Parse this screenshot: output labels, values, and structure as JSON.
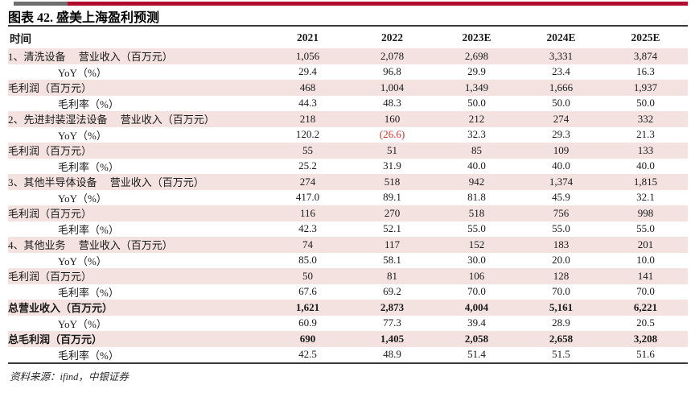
{
  "page": {
    "title": "图表 42. 盛美上海盈利预测",
    "source_note": "资料来源：ifind，中银证券",
    "accent_colors": {
      "bar_gray": "#6e6e6e",
      "bar_red": "#af0c2e"
    }
  },
  "table": {
    "header": {
      "label": "时间",
      "columns": [
        "2021",
        "2022",
        "2023E",
        "2024E",
        "2025E"
      ]
    },
    "colors": {
      "shaded_row": "#f3e2e0",
      "negative_value": "#e02a22"
    },
    "rows": [
      {
        "label": "1、清洗设备　 营业收入（百万元）",
        "indent": false,
        "bold": false,
        "shaded": true,
        "values": [
          "1,056",
          "2,078",
          "2,698",
          "3,331",
          "3,874"
        ]
      },
      {
        "label": "YoY（%）",
        "indent": true,
        "bold": false,
        "shaded": false,
        "values": [
          "29.4",
          "96.8",
          "29.9",
          "23.4",
          "16.3"
        ]
      },
      {
        "label": "毛利润（百万元）",
        "indent": false,
        "bold": false,
        "shaded": true,
        "values": [
          "468",
          "1,004",
          "1,349",
          "1,666",
          "1,937"
        ]
      },
      {
        "label": "毛利率（%）",
        "indent": true,
        "bold": false,
        "shaded": false,
        "values": [
          "44.3",
          "48.3",
          "50.0",
          "50.0",
          "50.0"
        ]
      },
      {
        "label": "2、先进封装湿法设备　 营业收入（百万元）",
        "indent": false,
        "bold": false,
        "shaded": true,
        "values": [
          "218",
          "160",
          "212",
          "274",
          "332"
        ]
      },
      {
        "label": "YoY（%）",
        "indent": true,
        "bold": false,
        "shaded": false,
        "values": [
          "120.2",
          "(26.6)",
          "32.3",
          "29.3",
          "21.3"
        ],
        "red_col": 1
      },
      {
        "label": "毛利润（百万元）",
        "indent": false,
        "bold": false,
        "shaded": true,
        "values": [
          "55",
          "51",
          "85",
          "109",
          "133"
        ]
      },
      {
        "label": "毛利率（%）",
        "indent": true,
        "bold": false,
        "shaded": false,
        "values": [
          "25.2",
          "31.9",
          "40.0",
          "40.0",
          "40.0"
        ]
      },
      {
        "label": "3、其他半导体设备　 营业收入（百万元）",
        "indent": false,
        "bold": false,
        "shaded": true,
        "values": [
          "274",
          "518",
          "942",
          "1,374",
          "1,815"
        ]
      },
      {
        "label": "YoY（%）",
        "indent": true,
        "bold": false,
        "shaded": false,
        "values": [
          "417.0",
          "89.1",
          "81.8",
          "45.9",
          "32.1"
        ]
      },
      {
        "label": "毛利润（百万元）",
        "indent": false,
        "bold": false,
        "shaded": true,
        "values": [
          "116",
          "270",
          "518",
          "756",
          "998"
        ]
      },
      {
        "label": "毛利率（%）",
        "indent": true,
        "bold": false,
        "shaded": false,
        "values": [
          "42.3",
          "52.1",
          "55.0",
          "55.0",
          "55.0"
        ]
      },
      {
        "label": "4、其他业务　 营业收入（百万元）",
        "indent": false,
        "bold": false,
        "shaded": true,
        "values": [
          "74",
          "117",
          "152",
          "183",
          "201"
        ]
      },
      {
        "label": "YoY（%）",
        "indent": true,
        "bold": false,
        "shaded": false,
        "values": [
          "85.0",
          "58.1",
          "30.0",
          "20.0",
          "10.0"
        ]
      },
      {
        "label": "毛利润（百万元）",
        "indent": false,
        "bold": false,
        "shaded": true,
        "values": [
          "50",
          "81",
          "106",
          "128",
          "141"
        ]
      },
      {
        "label": "毛利率（%）",
        "indent": true,
        "bold": false,
        "shaded": false,
        "values": [
          "67.6",
          "69.2",
          "70.0",
          "70.0",
          "70.0"
        ]
      },
      {
        "label": "总营业收入（百万元）",
        "indent": false,
        "bold": true,
        "shaded": true,
        "values": [
          "1,621",
          "2,873",
          "4,004",
          "5,161",
          "6,221"
        ]
      },
      {
        "label": "YoY（%）",
        "indent": true,
        "bold": false,
        "shaded": false,
        "values": [
          "60.9",
          "77.3",
          "39.4",
          "28.9",
          "20.5"
        ]
      },
      {
        "label": "总毛利润（百万元）",
        "indent": false,
        "bold": true,
        "shaded": true,
        "values": [
          "690",
          "1,405",
          "2,058",
          "2,658",
          "3,208"
        ]
      },
      {
        "label": "毛利率（%）",
        "indent": true,
        "bold": false,
        "shaded": false,
        "values": [
          "42.5",
          "48.9",
          "51.4",
          "51.5",
          "51.6"
        ]
      }
    ]
  }
}
